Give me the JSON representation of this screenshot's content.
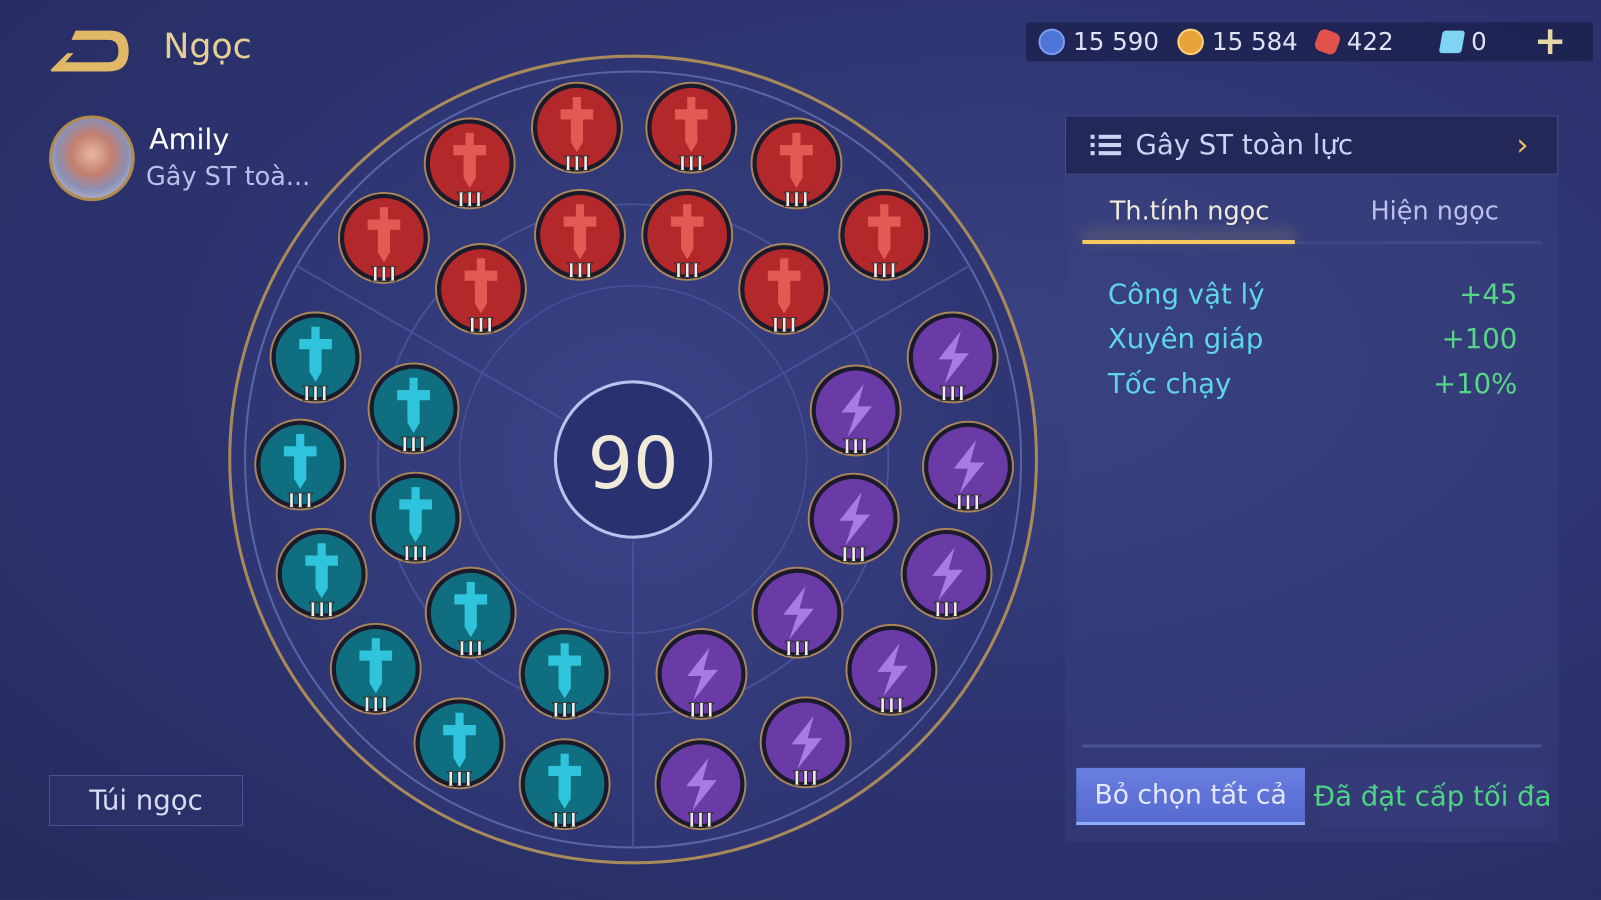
{
  "header": {
    "title": "Ngọc",
    "back_icon": "back-arrow-icon"
  },
  "currency": [
    {
      "icon": "blue-coin-icon",
      "color": "#4d74d6",
      "value": "15 590"
    },
    {
      "icon": "gold-coin-icon",
      "color": "#f0b040",
      "value": "15 584"
    },
    {
      "icon": "red-gem-icon",
      "color": "#e0524a",
      "value": "422"
    },
    {
      "icon": "ticket-icon",
      "color": "#7fd4f4",
      "value": "0"
    }
  ],
  "hero": {
    "name": "Amily",
    "preset": "Gây ST toà..."
  },
  "bag_button": "Túi ngọc",
  "level": "90",
  "gems": [
    {
      "type": "red",
      "level": "III"
    },
    {
      "type": "red",
      "level": "III"
    },
    {
      "type": "red",
      "level": "III"
    },
    {
      "type": "red",
      "level": "III"
    },
    {
      "type": "red",
      "level": "III"
    },
    {
      "type": "red",
      "level": "III"
    },
    {
      "type": "red",
      "level": "III"
    },
    {
      "type": "red",
      "level": "III"
    },
    {
      "type": "red",
      "level": "III"
    },
    {
      "type": "red",
      "level": "III"
    },
    {
      "type": "blue",
      "level": "III"
    },
    {
      "type": "blue",
      "level": "III"
    },
    {
      "type": "blue",
      "level": "III"
    },
    {
      "type": "blue",
      "level": "III"
    },
    {
      "type": "blue",
      "level": "III"
    },
    {
      "type": "blue",
      "level": "III"
    },
    {
      "type": "blue",
      "level": "III"
    },
    {
      "type": "blue",
      "level": "III"
    },
    {
      "type": "blue",
      "level": "III"
    },
    {
      "type": "blue",
      "level": "III"
    },
    {
      "type": "purple",
      "level": "III"
    },
    {
      "type": "purple",
      "level": "III"
    },
    {
      "type": "purple",
      "level": "III"
    },
    {
      "type": "purple",
      "level": "III"
    },
    {
      "type": "purple",
      "level": "III"
    },
    {
      "type": "purple",
      "level": "III"
    },
    {
      "type": "purple",
      "level": "III"
    },
    {
      "type": "purple",
      "level": "III"
    },
    {
      "type": "purple",
      "level": "III"
    },
    {
      "type": "purple",
      "level": "III"
    }
  ],
  "gem_colors": {
    "red": "#b3282a",
    "blue": "#0f6f80",
    "purple": "#6a3aa6"
  },
  "panel": {
    "preset_name": "Gây ST toàn lực",
    "tabs": [
      {
        "label": "Th.tính ngọc",
        "active": true
      },
      {
        "label": "Hiện ngọc",
        "active": false
      }
    ],
    "stats": [
      {
        "name": "Công vật lý",
        "value": "+45"
      },
      {
        "name": "Xuyên giáp",
        "value": "+100"
      },
      {
        "name": "Tốc chạy",
        "value": "+10%"
      }
    ],
    "unselect_button": "Bỏ chọn tất cả",
    "max_status": "Đã đạt cấp tối đa"
  }
}
